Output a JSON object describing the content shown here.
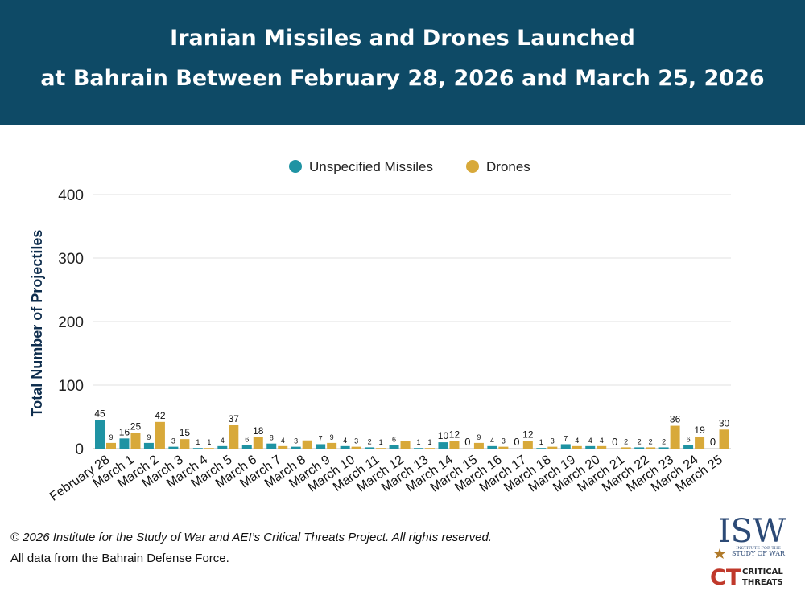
{
  "header": {
    "title_line1": "Iranian Missiles and Drones Launched",
    "title_line2": "at Bahrain Between February 28, 2026 and March 25, 2026"
  },
  "colors": {
    "banner": "#0e4a66",
    "missiles": "#1f93a3",
    "drones": "#d8a93a"
  },
  "chart_data": {
    "type": "bar",
    "ylabel": "Total Number of Projectiles",
    "xlabel": "",
    "ylim": [
      0,
      400
    ],
    "yticks": [
      0,
      100,
      200,
      300,
      400
    ],
    "grid": true,
    "legend_position": "top-center",
    "categories": [
      "February 28",
      "March 1",
      "March 2",
      "March 3",
      "March 4",
      "March 5",
      "March 6",
      "March 7",
      "March 8",
      "March 9",
      "March 10",
      "March 11",
      "March 12",
      "March 13",
      "March 14",
      "March 15",
      "March 16",
      "March 17",
      "March 18",
      "March 19",
      "March 20",
      "March 21",
      "March 22",
      "March 23",
      "March 24",
      "March 25"
    ],
    "series": [
      {
        "name": "Unspecified Missiles",
        "color": "#1f93a3",
        "values": [
          45,
          16,
          9,
          3,
          1,
          4,
          6,
          8,
          3,
          7,
          4,
          2,
          6,
          1,
          10,
          0,
          4,
          0,
          1,
          7,
          4,
          0,
          2,
          2,
          6,
          0
        ],
        "labels": [
          "45",
          "16",
          "9",
          "3",
          "1",
          "4",
          "6",
          "8",
          "3",
          "7",
          "4",
          "2",
          "6",
          "1",
          "10",
          "0",
          "4",
          "0",
          "1",
          "7",
          "4",
          "0",
          "2",
          "2",
          "6",
          "0"
        ]
      },
      {
        "name": "Drones",
        "color": "#d8a93a",
        "values": [
          9,
          25,
          42,
          15,
          1,
          37,
          18,
          4,
          13,
          9,
          3,
          1,
          12,
          1,
          12,
          9,
          3,
          12,
          3,
          4,
          4,
          2,
          2,
          36,
          19,
          30
        ],
        "labels": [
          "9",
          "25",
          "42",
          "15",
          "1",
          "37",
          "18",
          "4",
          "",
          "9",
          "3",
          "1",
          "",
          "1",
          "12",
          "9",
          "3",
          "12",
          "3",
          "4",
          "4",
          "2",
          "2",
          "36",
          "19",
          "30"
        ]
      }
    ]
  },
  "footer": {
    "copyright": "© 2026 Institute for the Study of War and AEI’s Critical Threats Project. All rights reserved.",
    "source": "All data from the Bahrain Defense Force."
  },
  "logos": {
    "isw_main": "ISW",
    "isw_sub1": "INSTITUTE FOR THE",
    "isw_sub2": "STUDY OF WAR",
    "ct_letters": "CT",
    "ct_text1": "CRITICAL",
    "ct_text2": "THREATS"
  }
}
